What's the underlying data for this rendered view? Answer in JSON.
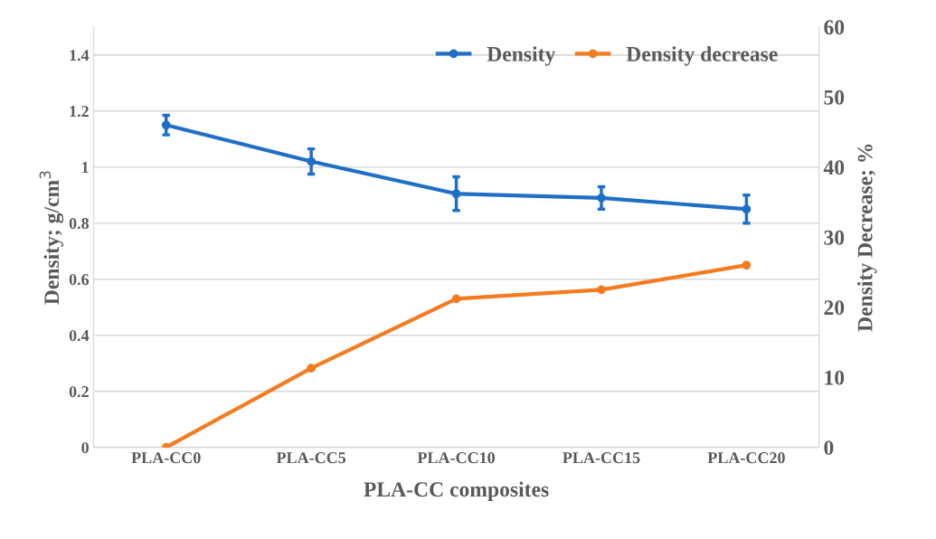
{
  "chart_data": {
    "type": "line",
    "xlabel": "PLA-CC composites",
    "ylabel": "Density; g/cm$^{3}$",
    "y2label": "Density Decrease; %",
    "categories": [
      "PLA-CC0",
      "PLA-CC5",
      "PLA-CC10",
      "PLA-CC15",
      "PLA-CC20"
    ],
    "series": [
      {
        "name": "Density",
        "color": "#1f6fc5",
        "values": [
          1.15,
          1.02,
          0.905,
          0.89,
          0.85
        ],
        "errors": [
          0.035,
          0.045,
          0.06,
          0.04,
          0.05
        ]
      },
      {
        "name": "Density decrease",
        "color": "#f47b20",
        "values": [
          0,
          11.3,
          21.2,
          22.5,
          26.0
        ],
        "axis": "y2"
      }
    ],
    "ylim": [
      0,
      1.5
    ],
    "yticks": [
      0,
      0.2,
      0.4,
      0.6,
      0.8,
      1,
      1.2,
      1.4
    ],
    "y2lim": [
      0,
      60
    ],
    "y2ticks": [
      0,
      10,
      20,
      30,
      40,
      50,
      60
    ],
    "grid": "y",
    "legend": "top right",
    "marker": "circle",
    "line_style": "solid"
  }
}
